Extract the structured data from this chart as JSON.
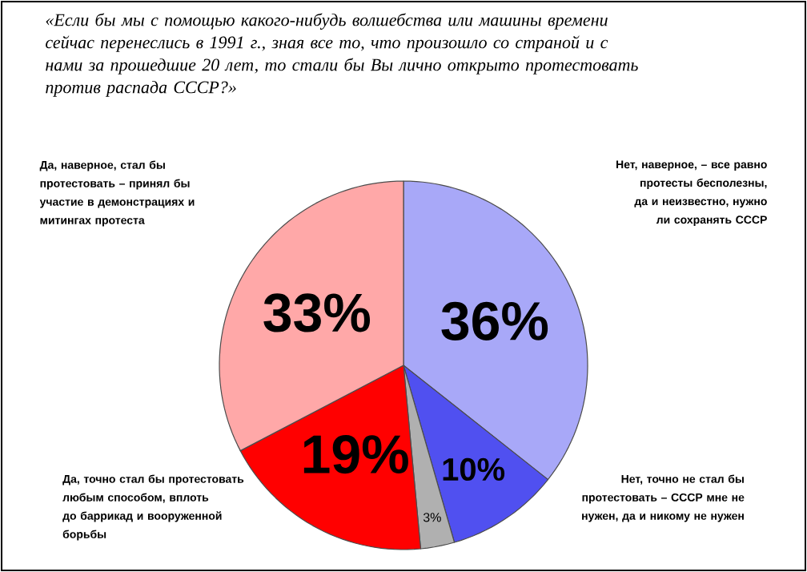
{
  "chart_data": {
    "type": "pie",
    "title": "«Если бы мы с помощью какого-нибудь волшебства или машины времени сейчас перенеслись в 1991 г., зная все то, что произошло со страной и с нами за прошедшие 20 лет, то стали бы Вы лично открыто протестовать против распада СССР?»",
    "categories": [
      "Нет, наверное, – все равно протесты бесполезны, да и неизвестно, нужно ли сохранять СССР",
      "Нет, точно не стал бы протестовать – СССР мне не нужен, да и никому не нужен",
      null,
      "Да, точно стал бы протестовать любым способом, вплоть до баррикад и вооруженной борьбы",
      "Да, наверное, стал бы протестовать – принял бы участие в демонстрациях и митингах протеста"
    ],
    "values": [
      36,
      10,
      3,
      19,
      33
    ],
    "value_labels": [
      "36%",
      "10%",
      "3%",
      "19%",
      "33%"
    ],
    "colors": [
      "#a8a8f8",
      "#5050f0",
      "#b0b0b0",
      "#ff0000",
      "#ffa8a8"
    ]
  }
}
